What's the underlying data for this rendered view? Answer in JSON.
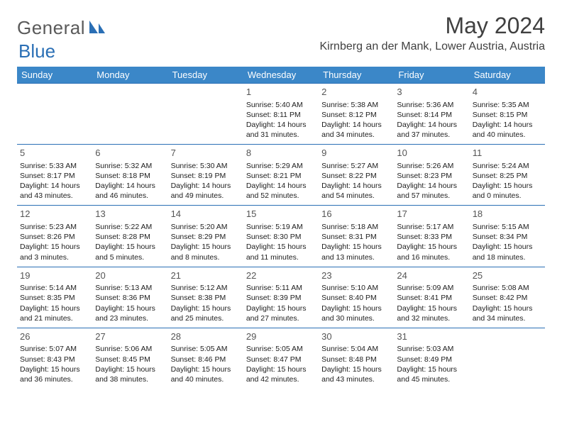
{
  "brand": {
    "part1": "General",
    "part2": "Blue"
  },
  "title": "May 2024",
  "location": "Kirnberg an der Mank, Lower Austria, Austria",
  "colors": {
    "header_bg": "#3b87c8",
    "header_text": "#ffffff",
    "rule": "#2a6fb5",
    "daynum": "#555555",
    "body_text": "#202020",
    "title_text": "#404040",
    "logo_gray": "#5a5a5a",
    "logo_blue": "#2a6fb5"
  },
  "weekdays": [
    "Sunday",
    "Monday",
    "Tuesday",
    "Wednesday",
    "Thursday",
    "Friday",
    "Saturday"
  ],
  "weeks": [
    [
      null,
      null,
      null,
      {
        "n": "1",
        "sr": "5:40 AM",
        "ss": "8:11 PM",
        "dl": "14 hours and 31 minutes."
      },
      {
        "n": "2",
        "sr": "5:38 AM",
        "ss": "8:12 PM",
        "dl": "14 hours and 34 minutes."
      },
      {
        "n": "3",
        "sr": "5:36 AM",
        "ss": "8:14 PM",
        "dl": "14 hours and 37 minutes."
      },
      {
        "n": "4",
        "sr": "5:35 AM",
        "ss": "8:15 PM",
        "dl": "14 hours and 40 minutes."
      }
    ],
    [
      {
        "n": "5",
        "sr": "5:33 AM",
        "ss": "8:17 PM",
        "dl": "14 hours and 43 minutes."
      },
      {
        "n": "6",
        "sr": "5:32 AM",
        "ss": "8:18 PM",
        "dl": "14 hours and 46 minutes."
      },
      {
        "n": "7",
        "sr": "5:30 AM",
        "ss": "8:19 PM",
        "dl": "14 hours and 49 minutes."
      },
      {
        "n": "8",
        "sr": "5:29 AM",
        "ss": "8:21 PM",
        "dl": "14 hours and 52 minutes."
      },
      {
        "n": "9",
        "sr": "5:27 AM",
        "ss": "8:22 PM",
        "dl": "14 hours and 54 minutes."
      },
      {
        "n": "10",
        "sr": "5:26 AM",
        "ss": "8:23 PM",
        "dl": "14 hours and 57 minutes."
      },
      {
        "n": "11",
        "sr": "5:24 AM",
        "ss": "8:25 PM",
        "dl": "15 hours and 0 minutes."
      }
    ],
    [
      {
        "n": "12",
        "sr": "5:23 AM",
        "ss": "8:26 PM",
        "dl": "15 hours and 3 minutes."
      },
      {
        "n": "13",
        "sr": "5:22 AM",
        "ss": "8:28 PM",
        "dl": "15 hours and 5 minutes."
      },
      {
        "n": "14",
        "sr": "5:20 AM",
        "ss": "8:29 PM",
        "dl": "15 hours and 8 minutes."
      },
      {
        "n": "15",
        "sr": "5:19 AM",
        "ss": "8:30 PM",
        "dl": "15 hours and 11 minutes."
      },
      {
        "n": "16",
        "sr": "5:18 AM",
        "ss": "8:31 PM",
        "dl": "15 hours and 13 minutes."
      },
      {
        "n": "17",
        "sr": "5:17 AM",
        "ss": "8:33 PM",
        "dl": "15 hours and 16 minutes."
      },
      {
        "n": "18",
        "sr": "5:15 AM",
        "ss": "8:34 PM",
        "dl": "15 hours and 18 minutes."
      }
    ],
    [
      {
        "n": "19",
        "sr": "5:14 AM",
        "ss": "8:35 PM",
        "dl": "15 hours and 21 minutes."
      },
      {
        "n": "20",
        "sr": "5:13 AM",
        "ss": "8:36 PM",
        "dl": "15 hours and 23 minutes."
      },
      {
        "n": "21",
        "sr": "5:12 AM",
        "ss": "8:38 PM",
        "dl": "15 hours and 25 minutes."
      },
      {
        "n": "22",
        "sr": "5:11 AM",
        "ss": "8:39 PM",
        "dl": "15 hours and 27 minutes."
      },
      {
        "n": "23",
        "sr": "5:10 AM",
        "ss": "8:40 PM",
        "dl": "15 hours and 30 minutes."
      },
      {
        "n": "24",
        "sr": "5:09 AM",
        "ss": "8:41 PM",
        "dl": "15 hours and 32 minutes."
      },
      {
        "n": "25",
        "sr": "5:08 AM",
        "ss": "8:42 PM",
        "dl": "15 hours and 34 minutes."
      }
    ],
    [
      {
        "n": "26",
        "sr": "5:07 AM",
        "ss": "8:43 PM",
        "dl": "15 hours and 36 minutes."
      },
      {
        "n": "27",
        "sr": "5:06 AM",
        "ss": "8:45 PM",
        "dl": "15 hours and 38 minutes."
      },
      {
        "n": "28",
        "sr": "5:05 AM",
        "ss": "8:46 PM",
        "dl": "15 hours and 40 minutes."
      },
      {
        "n": "29",
        "sr": "5:05 AM",
        "ss": "8:47 PM",
        "dl": "15 hours and 42 minutes."
      },
      {
        "n": "30",
        "sr": "5:04 AM",
        "ss": "8:48 PM",
        "dl": "15 hours and 43 minutes."
      },
      {
        "n": "31",
        "sr": "5:03 AM",
        "ss": "8:49 PM",
        "dl": "15 hours and 45 minutes."
      },
      null
    ]
  ],
  "labels": {
    "sunrise": "Sunrise:",
    "sunset": "Sunset:",
    "daylight": "Daylight:"
  }
}
